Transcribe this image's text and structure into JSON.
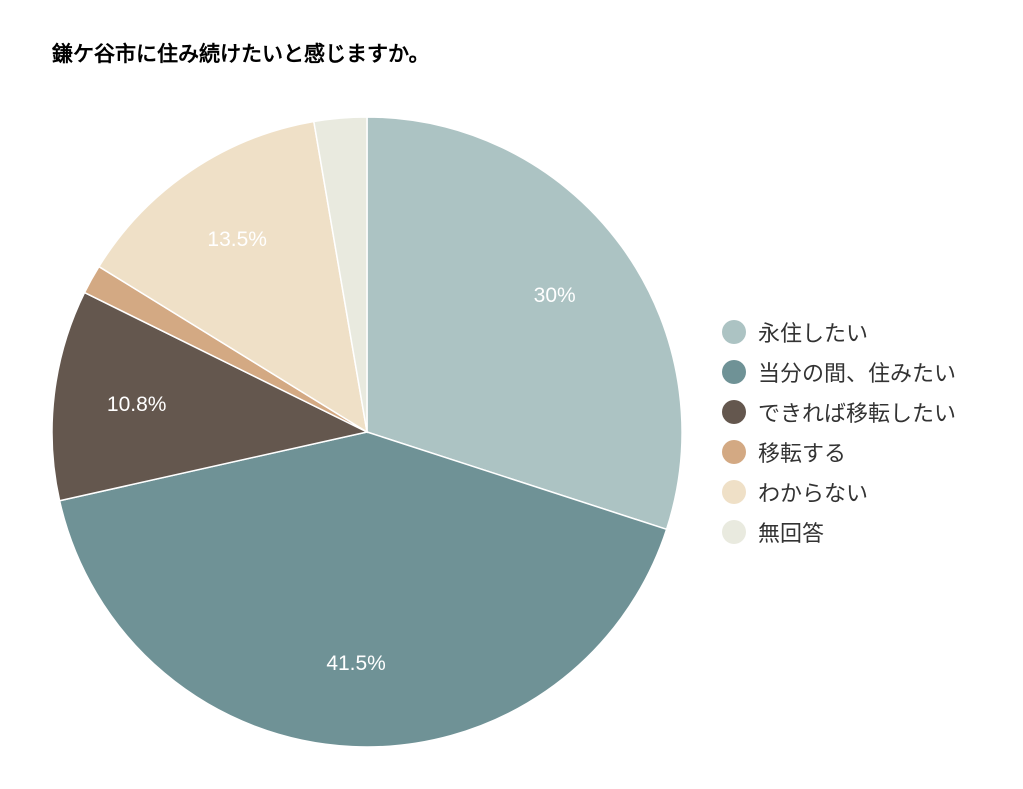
{
  "chart_data": {
    "type": "pie",
    "title": "鎌ケ谷市に住み続けたいと感じますか。",
    "slices": [
      {
        "name": "永住したい",
        "value": 30.0,
        "label": "30%",
        "color": "#acc3c3"
      },
      {
        "name": "当分の間、住みたい",
        "value": 41.5,
        "label": "41.5%",
        "color": "#6f9296"
      },
      {
        "name": "できれば移転したい",
        "value": 10.8,
        "label": "10.8%",
        "color": "#64574e"
      },
      {
        "name": "移転する",
        "value": 1.5,
        "label": "",
        "color": "#d3a983"
      },
      {
        "name": "わからない",
        "value": 13.5,
        "label": "13.5%",
        "color": "#efe0c7"
      },
      {
        "name": "無回答",
        "value": 2.7,
        "label": "",
        "color": "#e9eadf"
      }
    ],
    "legend_position": "right"
  }
}
